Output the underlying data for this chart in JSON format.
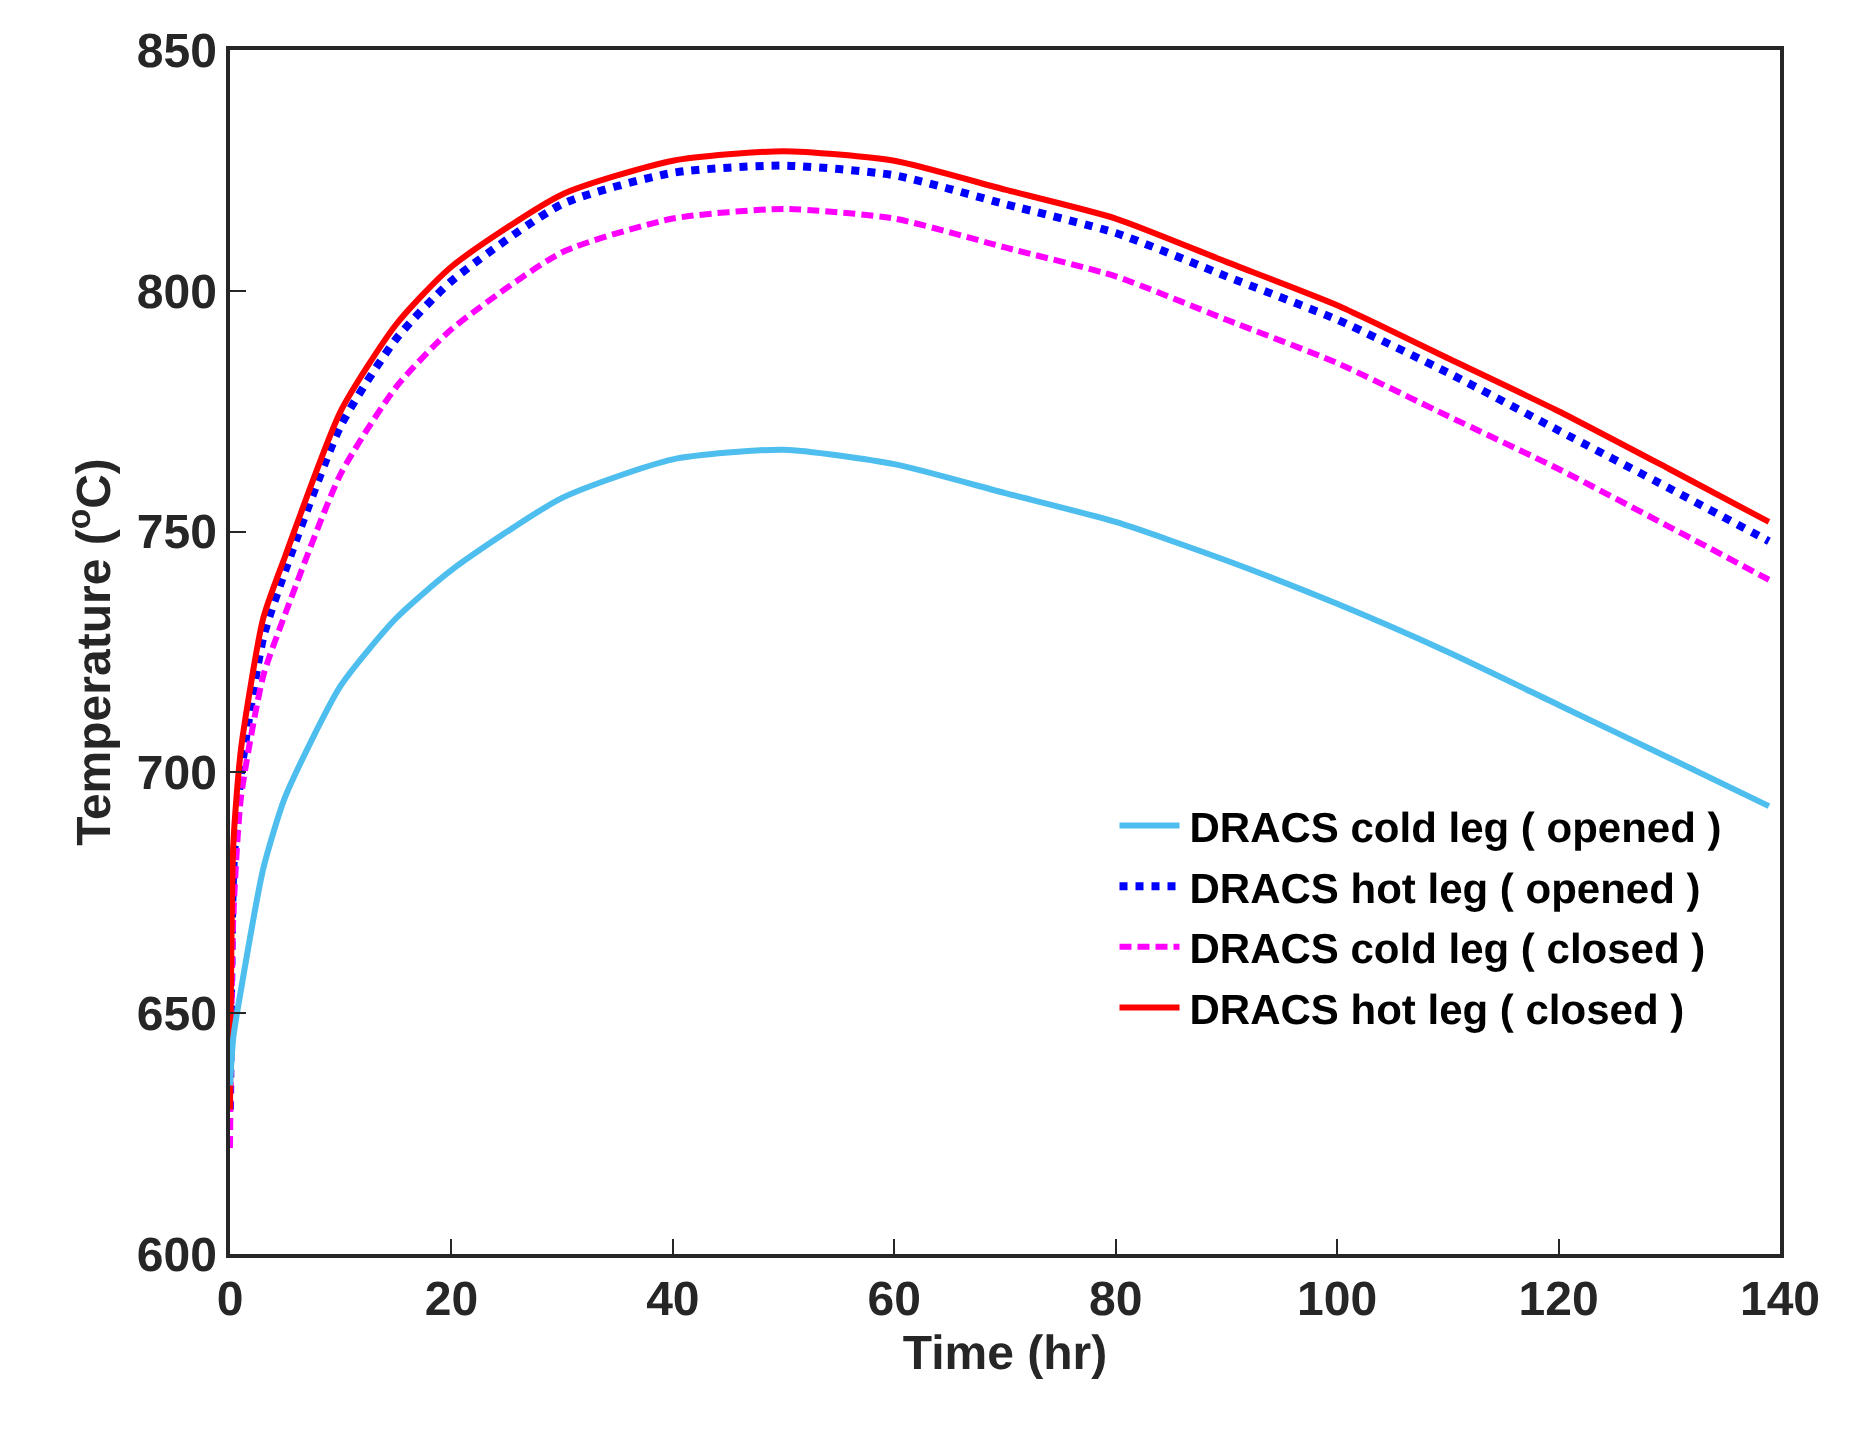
{
  "chart_data": {
    "type": "line",
    "xlabel": "Time (hr)",
    "ylabel": "Temperature ($^{o}$C)",
    "xlim": [
      0,
      140
    ],
    "xticks": [
      0,
      20,
      40,
      60,
      80,
      100,
      120,
      140
    ],
    "ylim": [
      600,
      850
    ],
    "yticks": [
      600,
      650,
      700,
      750,
      800,
      850
    ],
    "legend": "bottom right",
    "marker": "none",
    "x": [
      0,
      0.3,
      1,
      3,
      5,
      10,
      15,
      20,
      30,
      40,
      50,
      60,
      70,
      80,
      90,
      100,
      110,
      120,
      130,
      139
    ],
    "series": [
      {
        "name": "DRACS cold leg ( opened )",
        "color": "#4dbeee",
        "line_style": "solid",
        "values": [
          635,
          645,
          655,
          680,
          695,
          718,
          732,
          742,
          757,
          765,
          767,
          764,
          758,
          752,
          744,
          735,
          725,
          714,
          703,
          693
        ]
      },
      {
        "name": "DRACS hot leg ( opened )",
        "color": "#0000ff",
        "line_style": "dotted",
        "values": [
          630,
          680,
          700,
          728,
          742,
          772,
          790,
          802,
          818,
          824.5,
          826,
          824,
          818,
          812,
          803,
          794,
          783,
          771,
          759,
          748
        ]
      },
      {
        "name": "DRACS cold leg ( closed )",
        "color": "#ff00ff",
        "line_style": "dashed",
        "values": [
          622,
          670,
          695,
          720,
          733,
          762,
          780,
          792,
          808,
          815,
          817,
          815,
          809,
          803,
          794,
          785,
          774,
          763,
          751,
          740
        ]
      },
      {
        "name": "DRACS hot leg ( closed )",
        "color": "#ff0000",
        "line_style": "solid",
        "values": [
          630,
          685,
          705,
          732,
          745,
          775,
          793,
          805,
          820,
          827,
          829,
          827,
          821,
          815,
          806,
          797,
          786,
          775,
          763,
          752
        ]
      }
    ]
  }
}
